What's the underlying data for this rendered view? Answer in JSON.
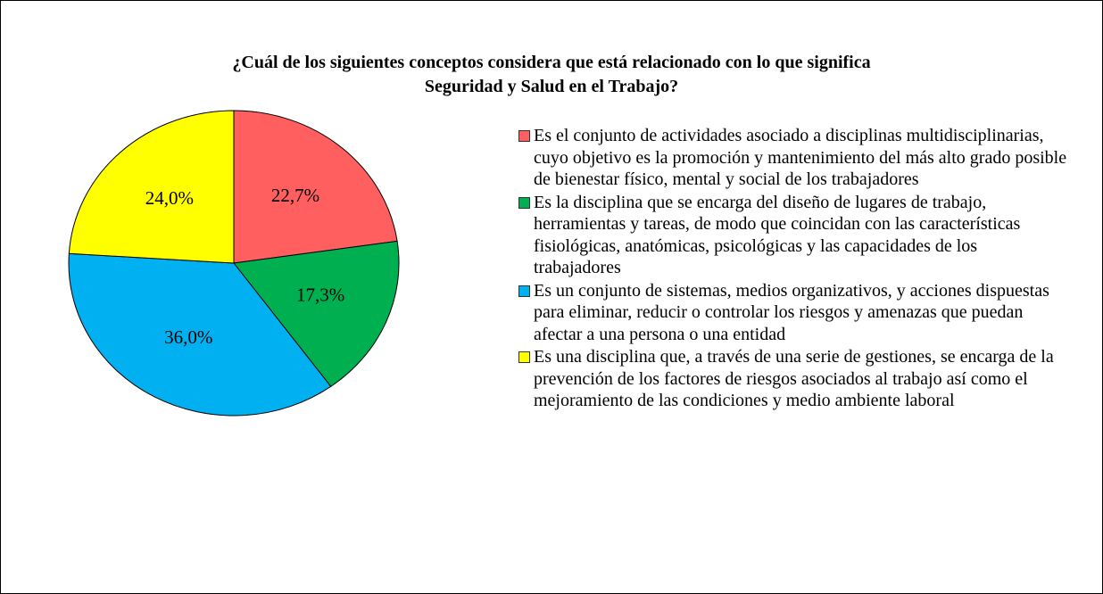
{
  "chart_data": {
    "type": "pie",
    "title": "¿Cuál de los siguientes conceptos considera que está relacionado con lo que significa Seguridad y Salud en el Trabajo?",
    "categories": [
      "Es el conjunto de actividades asociado a disciplinas multidisciplinarias, cuyo objetivo es la promoción y mantenimiento del más alto grado posible de bienestar físico, mental y social de los trabajadores",
      "Es la disciplina que se encarga del diseño de lugares de trabajo, herramientas y tareas, de modo que coincidan con las características fisiológicas, anatómicas, psicológicas y las capacidades de los trabajadores",
      "Es un conjunto de sistemas, medios organizativos, y acciones dispuestas para eliminar, reducir o controlar los riesgos y amenazas que puedan afectar a una persona o una entidad",
      "Es una disciplina que, a través de una serie de gestiones, se encarga de la prevención de los factores de riesgos asociados al trabajo así como el mejoramiento de las condiciones y medio ambiente laboral"
    ],
    "values": [
      22.7,
      17.3,
      36.0,
      24.0
    ],
    "value_labels": [
      "22,7%",
      "17,3%",
      "36,0%",
      "24,0%"
    ],
    "colors": [
      "#ff5f5f",
      "#00b050",
      "#00b0f0",
      "#ffff00"
    ],
    "legend": "right"
  }
}
